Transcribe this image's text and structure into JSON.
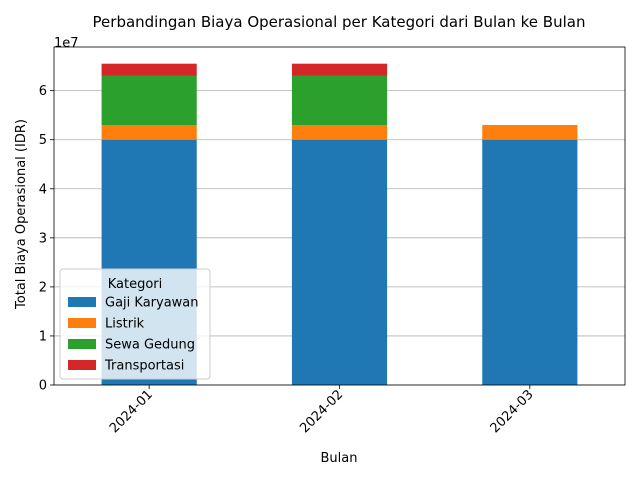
{
  "chart_data": {
    "type": "bar",
    "stacked": true,
    "title": "Perbandingan Biaya Operasional per Kategori dari Bulan ke Bulan",
    "xlabel": "Bulan",
    "ylabel": "Total Biaya Operasional (IDR)",
    "y_scale_label": "1e7",
    "categories": [
      "2024-01",
      "2024-02",
      "2024-03"
    ],
    "ylim": [
      0,
      68900000
    ],
    "y_ticks": [
      0,
      10000000,
      20000000,
      30000000,
      40000000,
      50000000,
      60000000
    ],
    "y_tick_labels": [
      "0",
      "1",
      "2",
      "3",
      "4",
      "5",
      "6"
    ],
    "grid": "horizontal",
    "legend": {
      "title": "Kategori",
      "position": "lower-left"
    },
    "series": [
      {
        "name": "Gaji Karyawan",
        "color": "#1f77b4",
        "values": [
          50000000,
          50000000,
          50000000
        ]
      },
      {
        "name": "Listrik",
        "color": "#ff7f0e",
        "values": [
          3000000,
          3000000,
          3000000
        ]
      },
      {
        "name": "Sewa Gedung",
        "color": "#2ca02c",
        "values": [
          10000000,
          10000000,
          0
        ]
      },
      {
        "name": "Transportasi",
        "color": "#d62728",
        "values": [
          2500000,
          2500000,
          0
        ]
      }
    ]
  }
}
